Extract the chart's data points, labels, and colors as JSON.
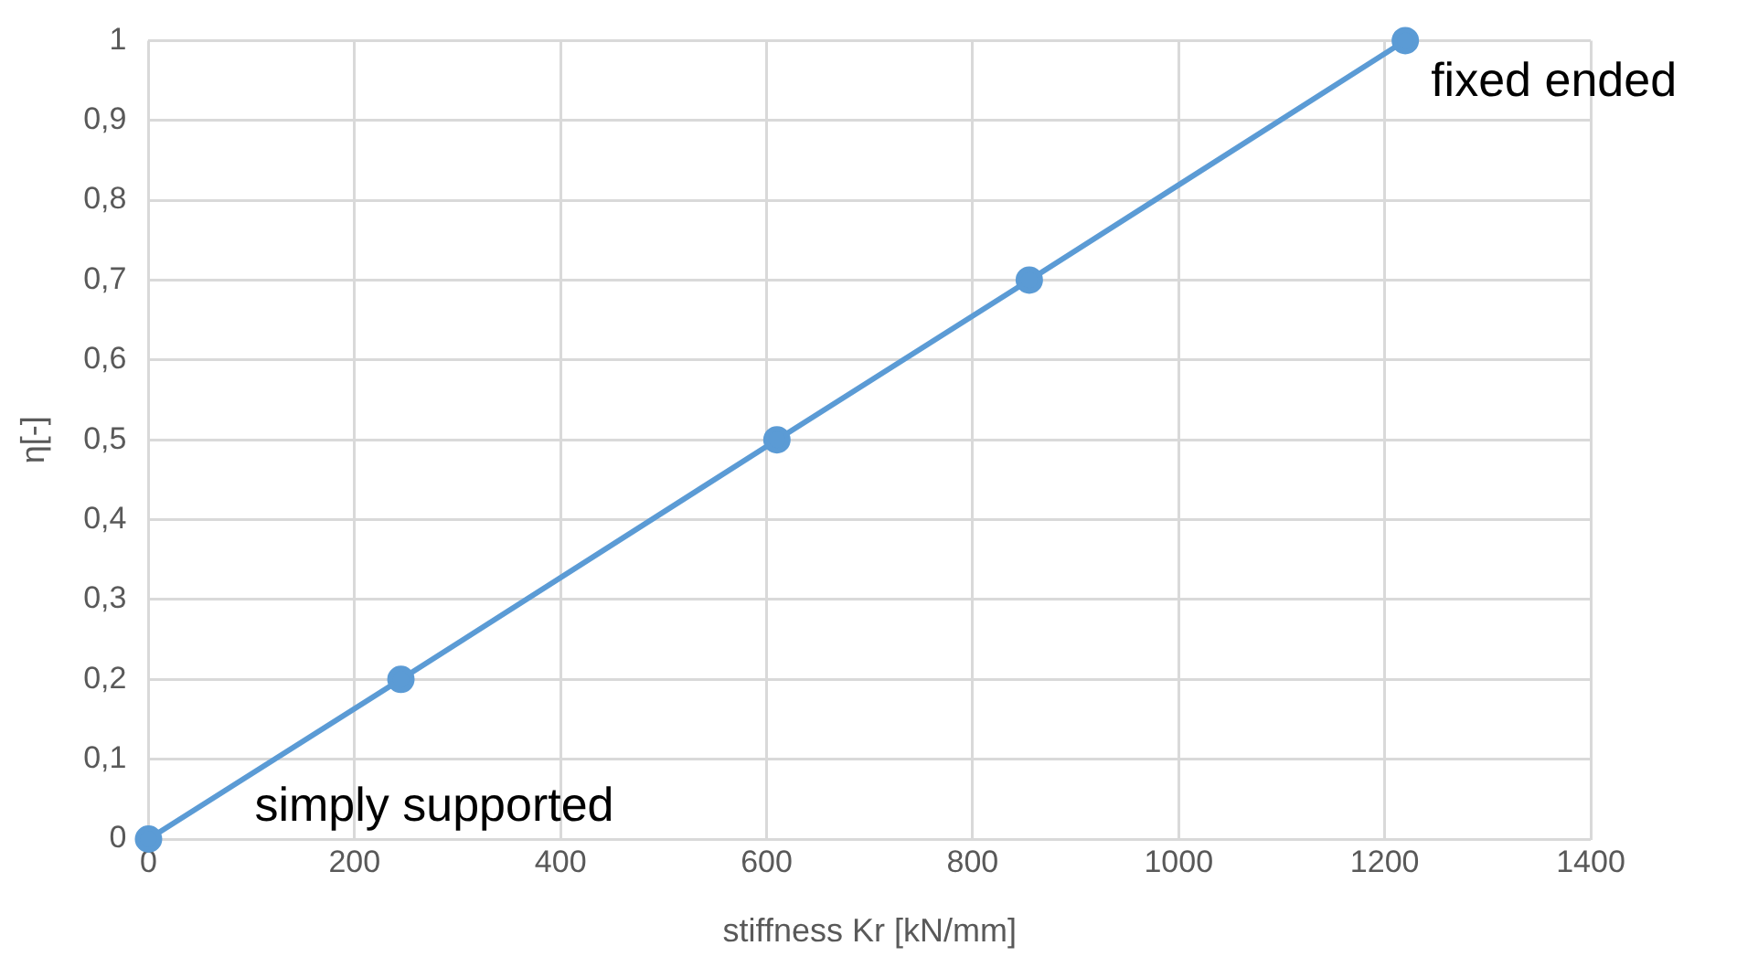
{
  "chart_data": {
    "type": "line",
    "xlabel": "stiffness Kr [kN/mm]",
    "ylabel": "η[-]",
    "series": [
      {
        "color": "#5b9bd5",
        "x": [
          0,
          245,
          610,
          855,
          1220
        ],
        "values": [
          0,
          0.2,
          0.5,
          0.7,
          1
        ]
      }
    ],
    "xlim": [
      0,
      1400
    ],
    "xticks": [
      0,
      200,
      400,
      600,
      800,
      1000,
      1200,
      1400
    ],
    "ylim": [
      0,
      1
    ],
    "yticks": [
      0,
      {
        "value": 0.1,
        "label": "0,1"
      },
      {
        "value": 0.2,
        "label": "0,2"
      },
      {
        "value": 0.3,
        "label": "0,3"
      },
      {
        "value": 0.4,
        "label": "0,4"
      },
      {
        "value": 0.5,
        "label": "0,5"
      },
      {
        "value": 0.6,
        "label": "0,6"
      },
      {
        "value": 0.7,
        "label": "0,7"
      },
      {
        "value": 0.8,
        "label": "0,8"
      },
      {
        "value": 0.9,
        "label": "0,9"
      },
      1
    ],
    "grid": true,
    "legend": false,
    "marker": "circle",
    "line_style": "solid",
    "annotations": [
      {
        "text": "simply supported",
        "x": 0,
        "y": 0
      },
      {
        "text": "fixed ended",
        "x": 1220,
        "y": 1
      }
    ]
  }
}
